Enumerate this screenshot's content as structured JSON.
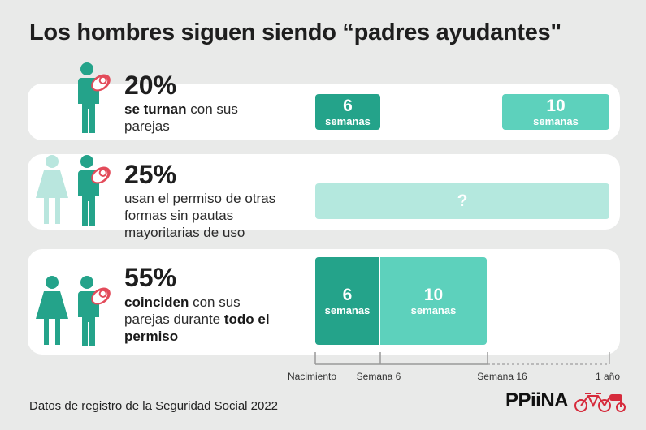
{
  "title": "Los hombres siguen siendo “padres ayudantes\"",
  "colors": {
    "background": "#e9eae9",
    "dark_teal": "#24a38a",
    "light_teal": "#5dd1bc",
    "pale_teal": "#b4e8de",
    "figure_woman": "#b9e6de",
    "baby_red": "#e34b5a",
    "logo_bike": "#d62b3c"
  },
  "rows": [
    {
      "percent": "20%",
      "desc": {
        "bold": "se turnan",
        "rest1": " con sus",
        "line2": "parejas"
      },
      "icons": [
        "man-with-baby-icon"
      ],
      "bars": [
        {
          "num": "6",
          "unit": "semanas"
        },
        {
          "num": "10",
          "unit": "semanas"
        }
      ]
    },
    {
      "percent": "25%",
      "desc": {
        "line1": "usan el permiso de otras",
        "line2": "formas sin pautas",
        "line3": "mayoritarias de uso"
      },
      "icons": [
        "woman-icon",
        "man-with-baby-icon"
      ],
      "bars": [
        {
          "num": "?"
        }
      ]
    },
    {
      "percent": "55%",
      "desc": {
        "bold1": "coinciden",
        "rest1": " con sus",
        "line2a": "parejas durante ",
        "bold2": "todo el",
        "line3": "permiso"
      },
      "icons": [
        "woman-icon",
        "man-with-baby-icon"
      ],
      "bars": [
        {
          "num": "6",
          "unit": "semanas"
        },
        {
          "num": "10",
          "unit": "semanas"
        }
      ]
    }
  ],
  "timeline": {
    "labels": [
      "Nacimiento",
      "Semana 6",
      "Semana 16",
      "1 año"
    ]
  },
  "source": "Datos de registro de la Seguridad Social 2022",
  "logo": "PPiiNA"
}
